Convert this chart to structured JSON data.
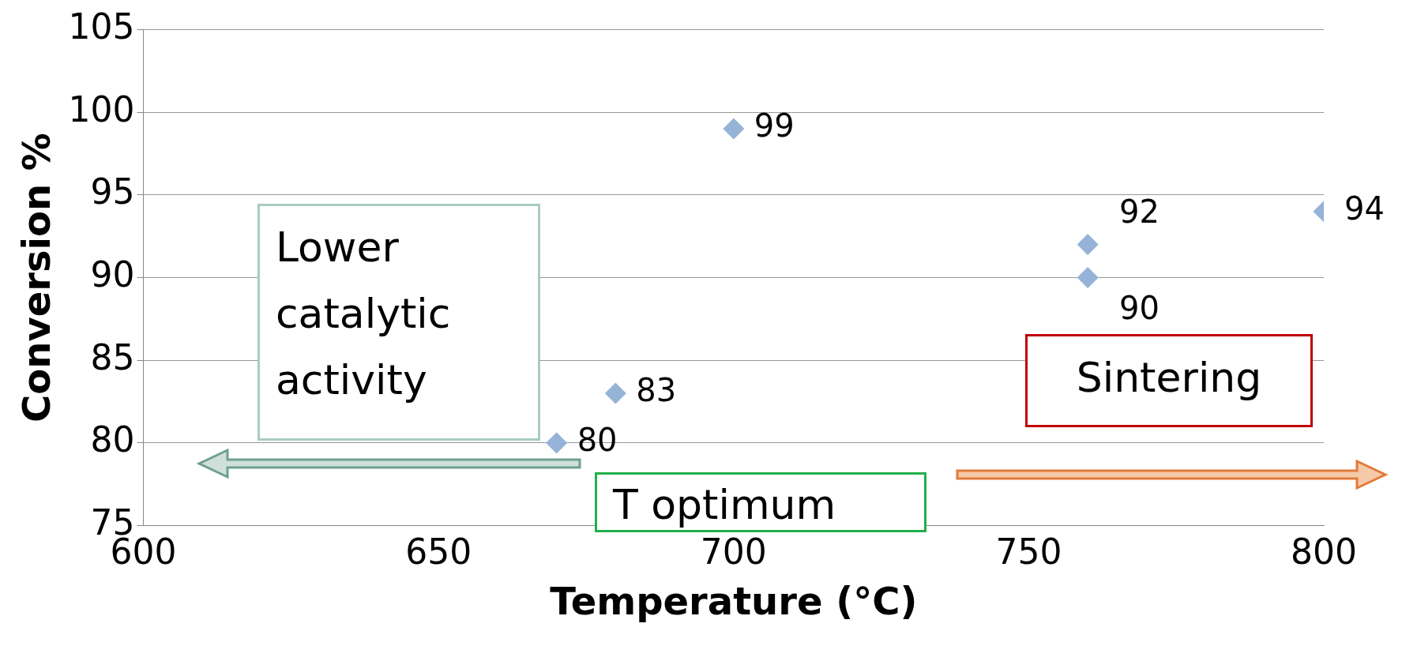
{
  "chart_data": {
    "type": "scatter",
    "xlabel": "Temperature (°C)",
    "ylabel": "Conversion %",
    "x": [
      670,
      680,
      700,
      760,
      760,
      800
    ],
    "series": [
      {
        "color": "#95b3d7",
        "values": [
          80,
          83,
          99,
          92,
          90,
          94
        ]
      }
    ],
    "data_labels": true,
    "marker": "diamond",
    "grid": "y",
    "legend": false,
    "xlim": [
      600,
      800
    ],
    "xticks": [
      600,
      650,
      700,
      750,
      800
    ],
    "ylim": [
      75,
      105
    ],
    "yticks": [
      75,
      80,
      85,
      90,
      95,
      100,
      105
    ],
    "annotations": [
      "Lower catalytic activity",
      "T optimum",
      "Sintering"
    ]
  }
}
